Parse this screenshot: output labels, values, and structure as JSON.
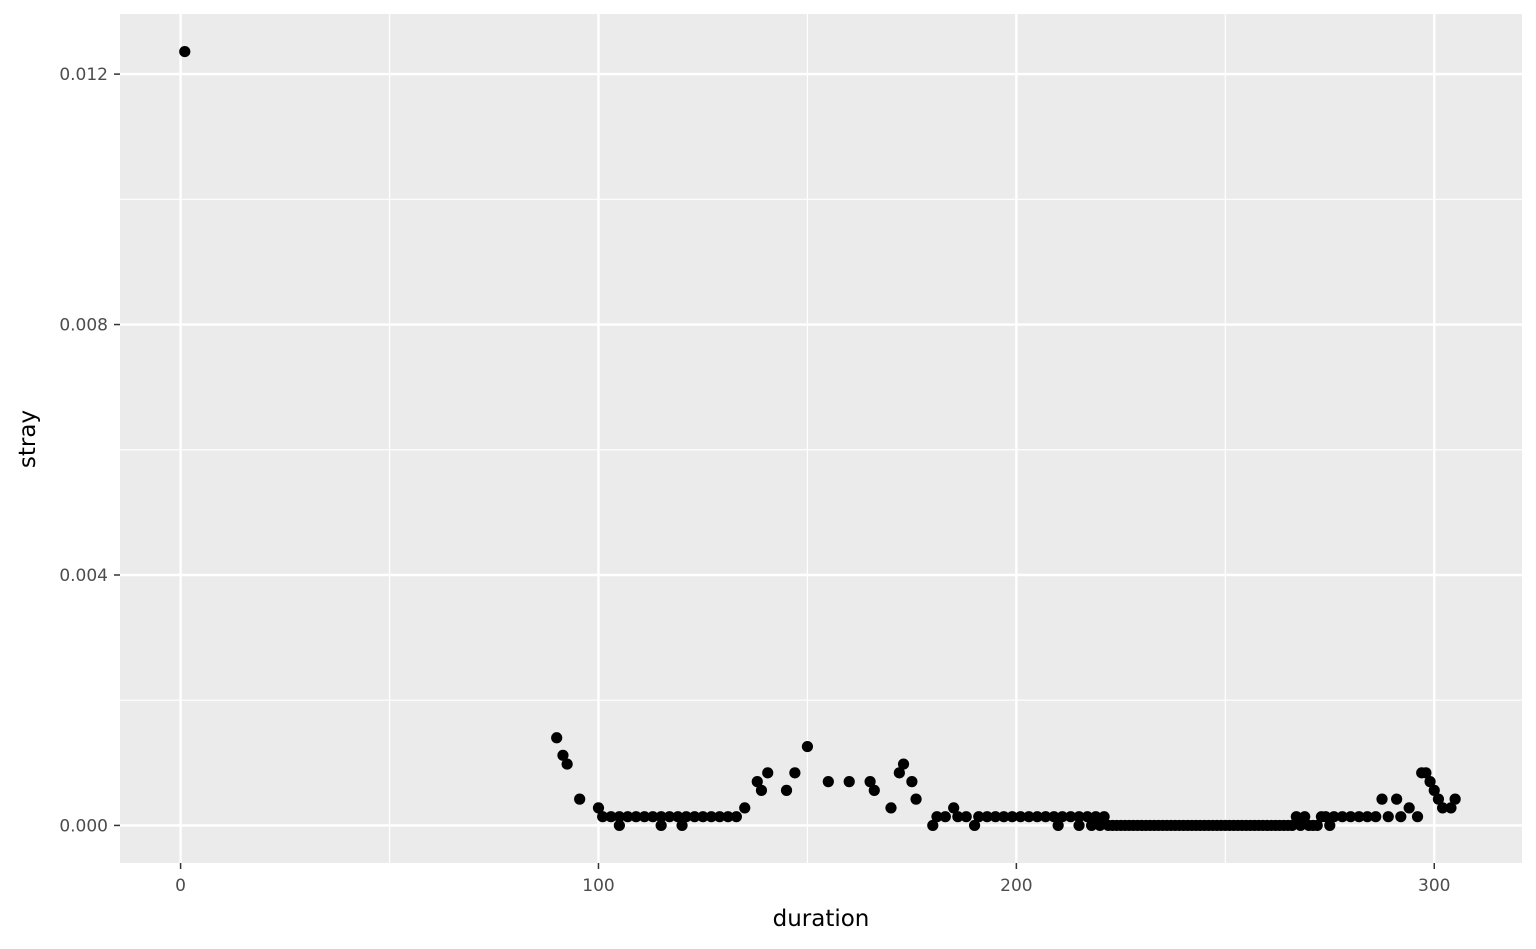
{
  "chart_data": {
    "type": "scatter",
    "xlabel": "duration",
    "ylabel": "stray",
    "xlim": [
      -14.5,
      321
    ],
    "ylim": [
      -0.0006,
      0.01296
    ],
    "x_ticks": [
      0,
      100,
      200,
      300
    ],
    "x_tick_labels": [
      "0",
      "100",
      "200",
      "300"
    ],
    "y_ticks": [
      0.0,
      0.004,
      0.008,
      0.012
    ],
    "y_tick_labels": [
      "0.000",
      "0.004",
      "0.008",
      "0.012"
    ],
    "grid": true,
    "colors": {
      "panel": "#ebebeb",
      "grid": "#ffffff",
      "points": "#000000"
    },
    "points": [
      [
        1,
        0.01236
      ],
      [
        90,
        0.0014
      ],
      [
        91.5,
        0.00112
      ],
      [
        92.5,
        0.00098
      ],
      [
        95.5,
        0.00042
      ],
      [
        100,
        0.00028
      ],
      [
        101,
        0.00014
      ],
      [
        103,
        0.00014
      ],
      [
        105,
        0.0
      ],
      [
        105,
        0.00014
      ],
      [
        107,
        0.00014
      ],
      [
        109,
        0.00014
      ],
      [
        111,
        0.00014
      ],
      [
        113,
        0.00014
      ],
      [
        115,
        0.0
      ],
      [
        115,
        0.00014
      ],
      [
        117,
        0.00014
      ],
      [
        119,
        0.00014
      ],
      [
        120,
        0.0
      ],
      [
        121,
        0.00014
      ],
      [
        123,
        0.00014
      ],
      [
        125,
        0.00014
      ],
      [
        127,
        0.00014
      ],
      [
        129,
        0.00014
      ],
      [
        131,
        0.00014
      ],
      [
        133,
        0.00014
      ],
      [
        135,
        0.00028
      ],
      [
        138,
        0.0007
      ],
      [
        139,
        0.00056
      ],
      [
        140.5,
        0.00084
      ],
      [
        145,
        0.00056
      ],
      [
        147,
        0.00084
      ],
      [
        150,
        0.00126
      ],
      [
        155,
        0.0007
      ],
      [
        160,
        0.0007
      ],
      [
        165,
        0.0007
      ],
      [
        166,
        0.00056
      ],
      [
        170,
        0.00028
      ],
      [
        172,
        0.00084
      ],
      [
        173,
        0.00098
      ],
      [
        175,
        0.0007
      ],
      [
        176,
        0.00042
      ],
      [
        180,
        0.0
      ],
      [
        181,
        0.00014
      ],
      [
        183,
        0.00014
      ],
      [
        185,
        0.00028
      ],
      [
        186,
        0.00014
      ],
      [
        188,
        0.00014
      ],
      [
        190,
        0.0
      ],
      [
        191,
        0.00014
      ],
      [
        193,
        0.00014
      ],
      [
        195,
        0.00014
      ],
      [
        197,
        0.00014
      ],
      [
        199,
        0.00014
      ],
      [
        201,
        0.00014
      ],
      [
        203,
        0.00014
      ],
      [
        205,
        0.00014
      ],
      [
        207,
        0.00014
      ],
      [
        209,
        0.00014
      ],
      [
        210,
        0.0
      ],
      [
        211,
        0.00014
      ],
      [
        213,
        0.00014
      ],
      [
        215,
        0.0
      ],
      [
        215,
        0.00014
      ],
      [
        217,
        0.00014
      ],
      [
        218,
        0.0
      ],
      [
        219,
        0.00014
      ],
      [
        220,
        0.0
      ],
      [
        221,
        0.00014
      ],
      [
        222,
        0.0
      ],
      [
        223,
        0.0
      ],
      [
        224,
        0.0
      ],
      [
        225,
        0.0
      ],
      [
        226,
        0.0
      ],
      [
        227,
        0.0
      ],
      [
        228,
        0.0
      ],
      [
        229,
        0.0
      ],
      [
        230,
        0.0
      ],
      [
        231,
        0.0
      ],
      [
        232,
        0.0
      ],
      [
        233,
        0.0
      ],
      [
        234,
        0.0
      ],
      [
        235,
        0.0
      ],
      [
        236,
        0.0
      ],
      [
        237,
        0.0
      ],
      [
        238,
        0.0
      ],
      [
        239,
        0.0
      ],
      [
        240,
        0.0
      ],
      [
        241,
        0.0
      ],
      [
        242,
        0.0
      ],
      [
        243,
        0.0
      ],
      [
        244,
        0.0
      ],
      [
        245,
        0.0
      ],
      [
        246,
        0.0
      ],
      [
        247,
        0.0
      ],
      [
        248,
        0.0
      ],
      [
        249,
        0.0
      ],
      [
        250,
        0.0
      ],
      [
        251,
        0.0
      ],
      [
        252,
        0.0
      ],
      [
        253,
        0.0
      ],
      [
        254,
        0.0
      ],
      [
        255,
        0.0
      ],
      [
        256,
        0.0
      ],
      [
        257,
        0.0
      ],
      [
        258,
        0.0
      ],
      [
        259,
        0.0
      ],
      [
        260,
        0.0
      ],
      [
        261,
        0.0
      ],
      [
        262,
        0.0
      ],
      [
        263,
        0.0
      ],
      [
        264,
        0.0
      ],
      [
        265,
        0.0
      ],
      [
        266,
        0.0
      ],
      [
        267,
        0.00014
      ],
      [
        268,
        0.0
      ],
      [
        269,
        0.00014
      ],
      [
        270,
        0.0
      ],
      [
        271,
        0.0
      ],
      [
        272,
        0.0
      ],
      [
        273,
        0.00014
      ],
      [
        274,
        0.00014
      ],
      [
        275,
        0.0
      ],
      [
        276,
        0.00014
      ],
      [
        278,
        0.00014
      ],
      [
        280,
        0.00014
      ],
      [
        282,
        0.00014
      ],
      [
        284,
        0.00014
      ],
      [
        286,
        0.00014
      ],
      [
        287.5,
        0.00042
      ],
      [
        289,
        0.00014
      ],
      [
        291,
        0.00042
      ],
      [
        292,
        0.00014
      ],
      [
        294,
        0.00028
      ],
      [
        296,
        0.00014
      ],
      [
        297,
        0.00084
      ],
      [
        298,
        0.00084
      ],
      [
        299,
        0.0007
      ],
      [
        300,
        0.00056
      ],
      [
        301,
        0.00042
      ],
      [
        302,
        0.00028
      ],
      [
        304,
        0.00028
      ],
      [
        305,
        0.00042
      ]
    ]
  }
}
